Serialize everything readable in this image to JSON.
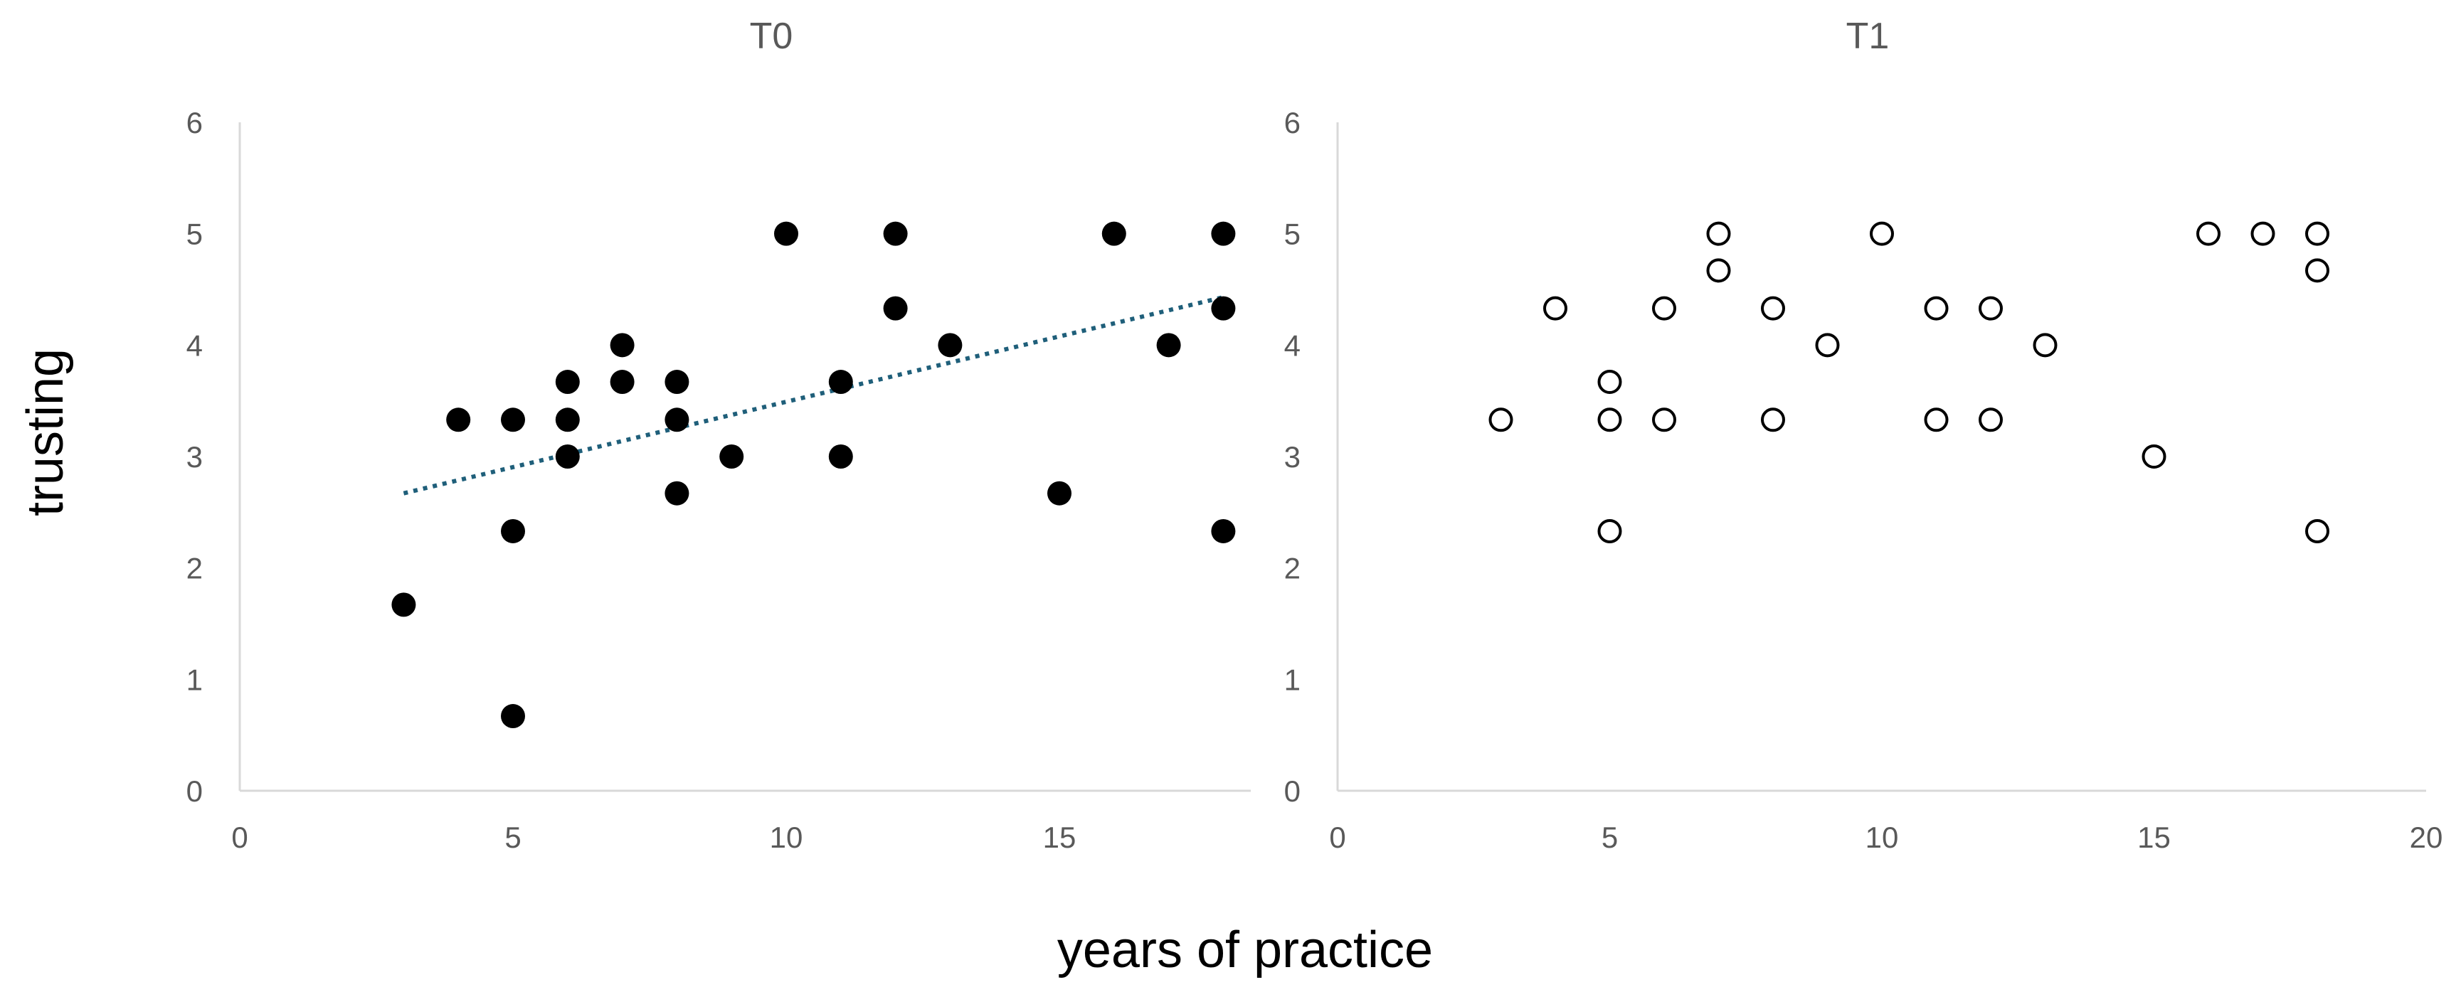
{
  "x_axis_title": "years of practice",
  "y_axis_title": "trusting",
  "chart_data": [
    {
      "type": "scatter",
      "title": "T0",
      "xlabel": "years of practice",
      "ylabel": "trusting",
      "xlim": [
        0,
        18.5
      ],
      "ylim": [
        0,
        6
      ],
      "x_ticks": [
        "0",
        "5",
        "10",
        "15"
      ],
      "y_ticks": [
        "0",
        "1",
        "2",
        "3",
        "4",
        "5",
        "6"
      ],
      "grid": false,
      "marker": "filled-circle",
      "marker_color": "#000000",
      "trendline": {
        "style": "dotted linear",
        "color": "#1f5f7a",
        "x": [
          3,
          18
        ],
        "y": [
          2.67,
          4.43
        ]
      },
      "points": [
        {
          "x": 3,
          "y": 1.67
        },
        {
          "x": 4,
          "y": 3.33
        },
        {
          "x": 5,
          "y": 3.33
        },
        {
          "x": 5,
          "y": 2.33
        },
        {
          "x": 5,
          "y": 0.67
        },
        {
          "x": 6,
          "y": 3.67
        },
        {
          "x": 6,
          "y": 3.33
        },
        {
          "x": 6,
          "y": 3
        },
        {
          "x": 7,
          "y": 4
        },
        {
          "x": 7,
          "y": 3.67
        },
        {
          "x": 8,
          "y": 3.67
        },
        {
          "x": 8,
          "y": 3.33
        },
        {
          "x": 8,
          "y": 2.67
        },
        {
          "x": 9,
          "y": 3
        },
        {
          "x": 10,
          "y": 5
        },
        {
          "x": 11,
          "y": 3.67
        },
        {
          "x": 11,
          "y": 3
        },
        {
          "x": 12,
          "y": 5
        },
        {
          "x": 12,
          "y": 4.33
        },
        {
          "x": 13,
          "y": 4
        },
        {
          "x": 15,
          "y": 2.67
        },
        {
          "x": 16,
          "y": 5
        },
        {
          "x": 17,
          "y": 4
        },
        {
          "x": 18,
          "y": 5
        },
        {
          "x": 18,
          "y": 4.33
        },
        {
          "x": 18,
          "y": 2.33
        }
      ]
    },
    {
      "type": "scatter",
      "title": "T1",
      "xlabel": "years of practice",
      "ylabel": "trusting",
      "xlim": [
        0,
        20
      ],
      "ylim": [
        0,
        6
      ],
      "x_ticks": [
        "0",
        "5",
        "10",
        "15",
        "20"
      ],
      "y_ticks": [
        "0",
        "1",
        "2",
        "3",
        "4",
        "5",
        "6"
      ],
      "grid": false,
      "marker": "hollow-circle",
      "marker_color": "#000000",
      "points": [
        {
          "x": 3,
          "y": 3.33
        },
        {
          "x": 4,
          "y": 4.33
        },
        {
          "x": 5,
          "y": 3.67
        },
        {
          "x": 5,
          "y": 3.33
        },
        {
          "x": 5,
          "y": 2.33
        },
        {
          "x": 6,
          "y": 4.33
        },
        {
          "x": 6,
          "y": 3.33
        },
        {
          "x": 7,
          "y": 5
        },
        {
          "x": 7,
          "y": 4.67
        },
        {
          "x": 8,
          "y": 4.33
        },
        {
          "x": 8,
          "y": 3.33
        },
        {
          "x": 9,
          "y": 4
        },
        {
          "x": 10,
          "y": 5
        },
        {
          "x": 11,
          "y": 4.33
        },
        {
          "x": 11,
          "y": 3.33
        },
        {
          "x": 12,
          "y": 4.33
        },
        {
          "x": 12,
          "y": 3.33
        },
        {
          "x": 13,
          "y": 4
        },
        {
          "x": 15,
          "y": 3
        },
        {
          "x": 16,
          "y": 5
        },
        {
          "x": 17,
          "y": 5
        },
        {
          "x": 18,
          "y": 5
        },
        {
          "x": 18,
          "y": 4.67
        },
        {
          "x": 18,
          "y": 2.33
        }
      ]
    }
  ]
}
